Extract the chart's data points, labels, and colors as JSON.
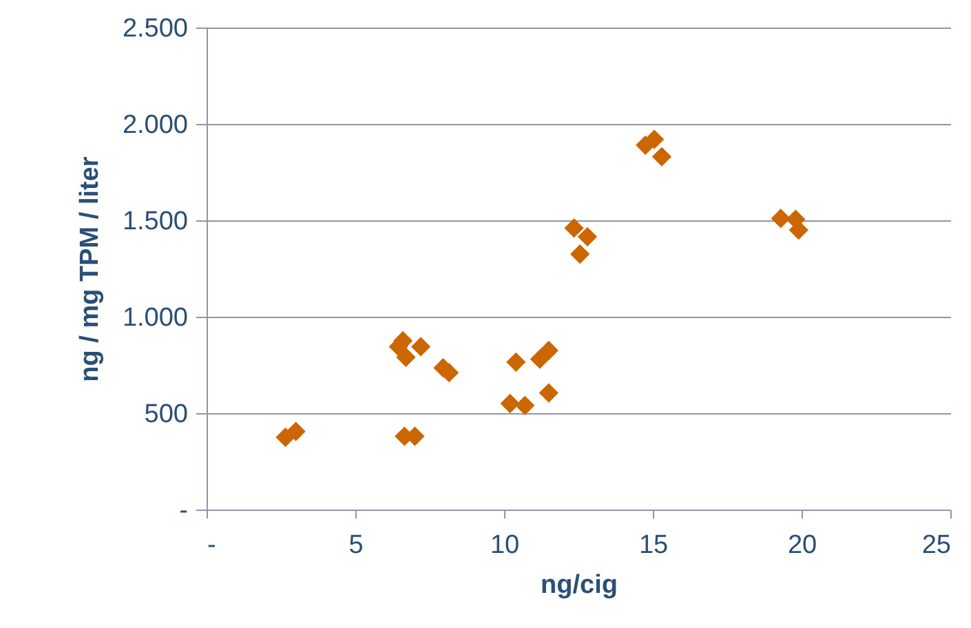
{
  "chart_data": {
    "type": "scatter",
    "xlabel": "ng/cig",
    "ylabel": "ng / mg TPM / liter",
    "marker": "diamond",
    "grid": "y",
    "xlim": [
      0,
      25
    ],
    "xticks": [
      {
        "value": 0,
        "label": "-"
      },
      5,
      10,
      15,
      20,
      25
    ],
    "ylim": [
      0,
      2500
    ],
    "yticks": [
      {
        "value": 0,
        "label": "-"
      },
      {
        "value": 500,
        "label": "500"
      },
      {
        "value": 1000,
        "label": "1.000"
      },
      {
        "value": 1500,
        "label": "1.500"
      },
      {
        "value": 2000,
        "label": "2.000"
      },
      {
        "value": 2500,
        "label": "2.500"
      }
    ],
    "series": [
      {
        "color": "#cc6600",
        "x": [
          2.65,
          3.0,
          6.6,
          6.45,
          6.7,
          7.2,
          6.65,
          7.0,
          7.95,
          8.15,
          10.2,
          10.7,
          10.4,
          11.2,
          11.5,
          11.5,
          12.35,
          12.8,
          12.55,
          14.75,
          15.05,
          15.3,
          19.3,
          19.8,
          19.9
        ],
        "values": [
          375,
          405,
          875,
          845,
          790,
          845,
          380,
          380,
          735,
          710,
          550,
          540,
          765,
          780,
          825,
          605,
          1460,
          1415,
          1325,
          1890,
          1920,
          1830,
          1510,
          1505,
          1450
        ]
      }
    ]
  }
}
